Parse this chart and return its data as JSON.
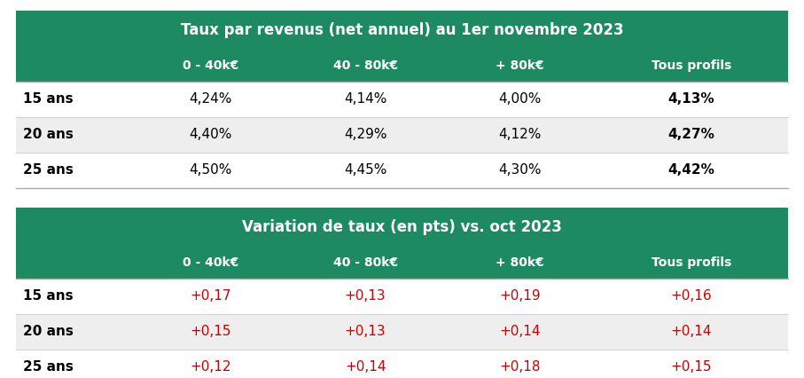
{
  "table1_title": "Taux par revenus (net annuel) au 1er novembre 2023",
  "table2_title": "Variation de taux (en pts) vs. oct 2023",
  "col_headers": [
    "0 - 40k€",
    "40 - 80k€",
    "+ 80k€",
    "Tous profils"
  ],
  "row_labels": [
    "15 ans",
    "20 ans",
    "25 ans"
  ],
  "table1_data": [
    [
      "4,24%",
      "4,14%",
      "4,00%",
      "4,13%"
    ],
    [
      "4,40%",
      "4,29%",
      "4,12%",
      "4,27%"
    ],
    [
      "4,50%",
      "4,45%",
      "4,30%",
      "4,42%"
    ]
  ],
  "table2_data": [
    [
      "+0,17",
      "+0,13",
      "+0,19",
      "+0,16"
    ],
    [
      "+0,15",
      "+0,13",
      "+0,14",
      "+0,14"
    ],
    [
      "+0,12",
      "+0,14",
      "+0,18",
      "+0,15"
    ]
  ],
  "header_bg_color": "#1e8a62",
  "header_text_color": "#ffffff",
  "row_label_text_color": "#000000",
  "data_text_color": "#000000",
  "variation_text_color": "#cc0000",
  "row_bg_colors": [
    "#ffffff",
    "#eeeeee",
    "#ffffff"
  ],
  "background_color": "#ffffff",
  "fig_width": 9.07,
  "fig_height": 4.26,
  "dpi": 100,
  "title_fontsize": 12,
  "header_fontsize": 10,
  "data_fontsize": 11,
  "label_fontsize": 11
}
